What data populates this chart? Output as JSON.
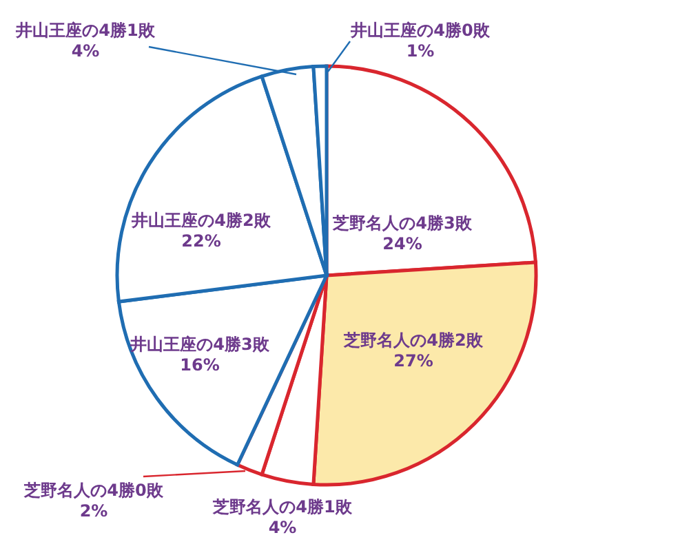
{
  "chart_data": {
    "type": "pie",
    "categories": [
      "芝野名人の4勝3敗",
      "芝野名人の4勝2敗",
      "芝野名人の4勝1敗",
      "芝野名人の4勝0敗",
      "井山王座の4勝3敗",
      "井山王座の4勝2敗",
      "井山王座の4勝1敗",
      "井山王座の4勝0敗"
    ],
    "values": [
      24,
      27,
      4,
      2,
      16,
      22,
      4,
      1
    ],
    "value_labels": [
      "24%",
      "27%",
      "4%",
      "2%",
      "16%",
      "22%",
      "4%",
      "1%"
    ],
    "colors": [
      "#ffffff",
      "#fce9aa",
      "#ffffff",
      "#ffffff",
      "#ffffff",
      "#ffffff",
      "#ffffff",
      "#ffffff"
    ]
  }
}
